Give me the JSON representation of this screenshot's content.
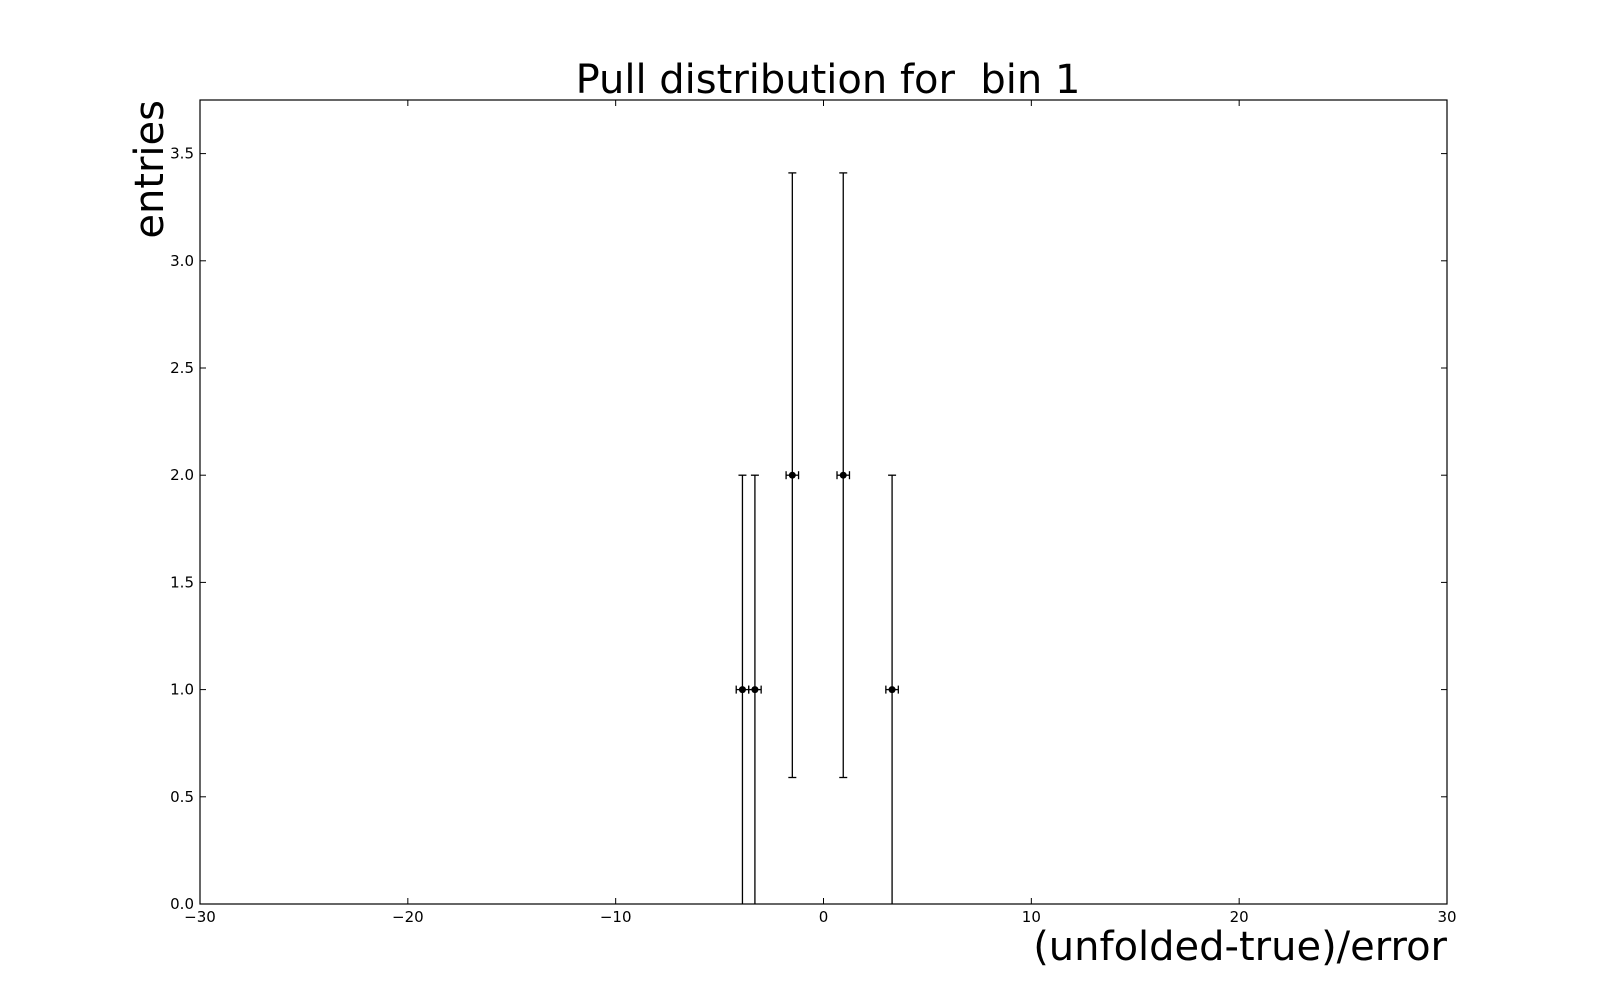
{
  "chart_data": {
    "type": "scatter",
    "title": "Pull distribution for  bin 1",
    "xlabel": "(unfolded-true)/error",
    "ylabel": "entries",
    "xlim": [
      -30,
      30
    ],
    "ylim": [
      0,
      3.75
    ],
    "grid": false,
    "legend": "none",
    "x_ticks": [
      {
        "value": -30,
        "label": "−30"
      },
      {
        "value": -20,
        "label": "−20"
      },
      {
        "value": -10,
        "label": "−10"
      },
      {
        "value": 0,
        "label": "0"
      },
      {
        "value": 10,
        "label": "10"
      },
      {
        "value": 20,
        "label": "20"
      },
      {
        "value": 30,
        "label": "30"
      }
    ],
    "y_ticks": [
      {
        "value": 0.0,
        "label": "0.0"
      },
      {
        "value": 0.5,
        "label": "0.5"
      },
      {
        "value": 1.0,
        "label": "1.0"
      },
      {
        "value": 1.5,
        "label": "1.5"
      },
      {
        "value": 2.0,
        "label": "2.0"
      },
      {
        "value": 2.5,
        "label": "2.5"
      },
      {
        "value": 3.0,
        "label": "3.0"
      },
      {
        "value": 3.5,
        "label": "3.5"
      }
    ],
    "points": [
      {
        "x": -3.9,
        "y": 1,
        "xerr": 0.3,
        "yerr_low": 1.0,
        "yerr_high": 1.0
      },
      {
        "x": -3.3,
        "y": 1,
        "xerr": 0.3,
        "yerr_low": 1.0,
        "yerr_high": 1.0
      },
      {
        "x": -1.5,
        "y": 2,
        "xerr": 0.3,
        "yerr_low": 1.41,
        "yerr_high": 1.41
      },
      {
        "x": 0.95,
        "y": 2,
        "xerr": 0.3,
        "yerr_low": 1.41,
        "yerr_high": 1.41
      },
      {
        "x": 3.3,
        "y": 1,
        "xerr": 0.3,
        "yerr_low": 1.0,
        "yerr_high": 1.0
      }
    ],
    "colors": {
      "marker": "#000000",
      "axes": "#000000",
      "background": "#ffffff"
    }
  }
}
